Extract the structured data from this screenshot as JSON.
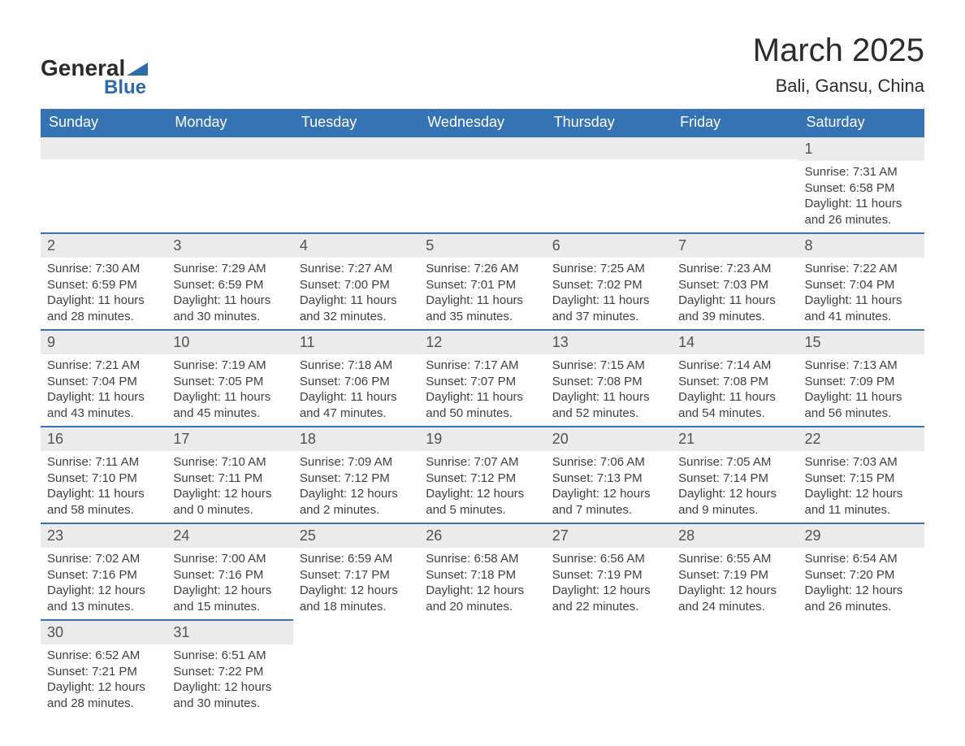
{
  "brand": {
    "text1": "General",
    "text2": "Blue",
    "accent": "#2f6bab"
  },
  "title": {
    "month": "March 2025",
    "location": "Bali, Gansu, China"
  },
  "style": {
    "header_bg": "#3673b4",
    "header_fg": "#ffffff",
    "dayhead_bg": "#ebebeb",
    "row_border": "#3673b4",
    "body_fg": "#3f3f3f",
    "title_fontsize": 40,
    "loc_fontsize": 22,
    "th_fontsize": 18,
    "day_fontsize": 18,
    "body_fontsize": 15
  },
  "weekdays": [
    "Sunday",
    "Monday",
    "Tuesday",
    "Wednesday",
    "Thursday",
    "Friday",
    "Saturday"
  ],
  "labels": {
    "sunrise": "Sunrise:",
    "sunset": "Sunset:",
    "daylight": "Daylight:"
  },
  "weeks": [
    [
      null,
      null,
      null,
      null,
      null,
      null,
      {
        "d": "1",
        "sunrise": "7:31 AM",
        "sunset": "6:58 PM",
        "daylight": "11 hours and 26 minutes."
      }
    ],
    [
      {
        "d": "2",
        "sunrise": "7:30 AM",
        "sunset": "6:59 PM",
        "daylight": "11 hours and 28 minutes."
      },
      {
        "d": "3",
        "sunrise": "7:29 AM",
        "sunset": "6:59 PM",
        "daylight": "11 hours and 30 minutes."
      },
      {
        "d": "4",
        "sunrise": "7:27 AM",
        "sunset": "7:00 PM",
        "daylight": "11 hours and 32 minutes."
      },
      {
        "d": "5",
        "sunrise": "7:26 AM",
        "sunset": "7:01 PM",
        "daylight": "11 hours and 35 minutes."
      },
      {
        "d": "6",
        "sunrise": "7:25 AM",
        "sunset": "7:02 PM",
        "daylight": "11 hours and 37 minutes."
      },
      {
        "d": "7",
        "sunrise": "7:23 AM",
        "sunset": "7:03 PM",
        "daylight": "11 hours and 39 minutes."
      },
      {
        "d": "8",
        "sunrise": "7:22 AM",
        "sunset": "7:04 PM",
        "daylight": "11 hours and 41 minutes."
      }
    ],
    [
      {
        "d": "9",
        "sunrise": "7:21 AM",
        "sunset": "7:04 PM",
        "daylight": "11 hours and 43 minutes."
      },
      {
        "d": "10",
        "sunrise": "7:19 AM",
        "sunset": "7:05 PM",
        "daylight": "11 hours and 45 minutes."
      },
      {
        "d": "11",
        "sunrise": "7:18 AM",
        "sunset": "7:06 PM",
        "daylight": "11 hours and 47 minutes."
      },
      {
        "d": "12",
        "sunrise": "7:17 AM",
        "sunset": "7:07 PM",
        "daylight": "11 hours and 50 minutes."
      },
      {
        "d": "13",
        "sunrise": "7:15 AM",
        "sunset": "7:08 PM",
        "daylight": "11 hours and 52 minutes."
      },
      {
        "d": "14",
        "sunrise": "7:14 AM",
        "sunset": "7:08 PM",
        "daylight": "11 hours and 54 minutes."
      },
      {
        "d": "15",
        "sunrise": "7:13 AM",
        "sunset": "7:09 PM",
        "daylight": "11 hours and 56 minutes."
      }
    ],
    [
      {
        "d": "16",
        "sunrise": "7:11 AM",
        "sunset": "7:10 PM",
        "daylight": "11 hours and 58 minutes."
      },
      {
        "d": "17",
        "sunrise": "7:10 AM",
        "sunset": "7:11 PM",
        "daylight": "12 hours and 0 minutes."
      },
      {
        "d": "18",
        "sunrise": "7:09 AM",
        "sunset": "7:12 PM",
        "daylight": "12 hours and 2 minutes."
      },
      {
        "d": "19",
        "sunrise": "7:07 AM",
        "sunset": "7:12 PM",
        "daylight": "12 hours and 5 minutes."
      },
      {
        "d": "20",
        "sunrise": "7:06 AM",
        "sunset": "7:13 PM",
        "daylight": "12 hours and 7 minutes."
      },
      {
        "d": "21",
        "sunrise": "7:05 AM",
        "sunset": "7:14 PM",
        "daylight": "12 hours and 9 minutes."
      },
      {
        "d": "22",
        "sunrise": "7:03 AM",
        "sunset": "7:15 PM",
        "daylight": "12 hours and 11 minutes."
      }
    ],
    [
      {
        "d": "23",
        "sunrise": "7:02 AM",
        "sunset": "7:16 PM",
        "daylight": "12 hours and 13 minutes."
      },
      {
        "d": "24",
        "sunrise": "7:00 AM",
        "sunset": "7:16 PM",
        "daylight": "12 hours and 15 minutes."
      },
      {
        "d": "25",
        "sunrise": "6:59 AM",
        "sunset": "7:17 PM",
        "daylight": "12 hours and 18 minutes."
      },
      {
        "d": "26",
        "sunrise": "6:58 AM",
        "sunset": "7:18 PM",
        "daylight": "12 hours and 20 minutes."
      },
      {
        "d": "27",
        "sunrise": "6:56 AM",
        "sunset": "7:19 PM",
        "daylight": "12 hours and 22 minutes."
      },
      {
        "d": "28",
        "sunrise": "6:55 AM",
        "sunset": "7:19 PM",
        "daylight": "12 hours and 24 minutes."
      },
      {
        "d": "29",
        "sunrise": "6:54 AM",
        "sunset": "7:20 PM",
        "daylight": "12 hours and 26 minutes."
      }
    ],
    [
      {
        "d": "30",
        "sunrise": "6:52 AM",
        "sunset": "7:21 PM",
        "daylight": "12 hours and 28 minutes."
      },
      {
        "d": "31",
        "sunrise": "6:51 AM",
        "sunset": "7:22 PM",
        "daylight": "12 hours and 30 minutes."
      },
      null,
      null,
      null,
      null,
      null
    ]
  ]
}
